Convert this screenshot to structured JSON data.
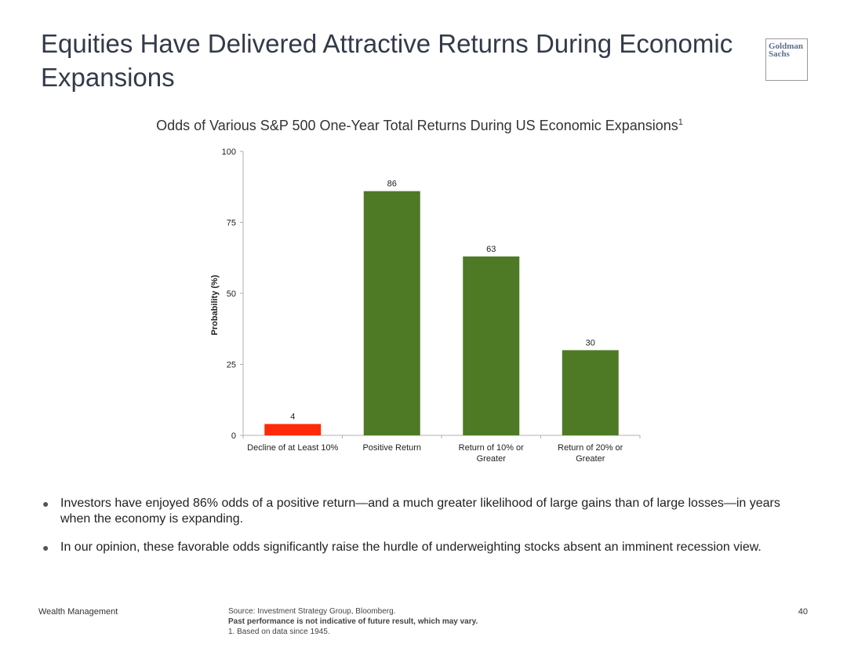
{
  "slide": {
    "title": "Equities Have Delivered Attractive Returns During Economic Expansions",
    "logo_line1": "Goldman",
    "logo_line2": "Sachs",
    "page_number": "40"
  },
  "chart_data": {
    "type": "bar",
    "title": "Odds of Various S&P 500 One-Year Total Returns During US Economic Expansions",
    "title_footnote": "1",
    "xlabel": "",
    "ylabel": "Probability (%)",
    "ylim": [
      0,
      100
    ],
    "yticks": [
      0,
      25,
      50,
      75,
      100
    ],
    "categories": [
      [
        "Decline of at Least 10%"
      ],
      [
        "Positive Return"
      ],
      [
        "Return of 10% or",
        "Greater"
      ],
      [
        "Return of 20% or",
        "Greater"
      ]
    ],
    "values": [
      4,
      86,
      63,
      30
    ],
    "bar_colors": [
      "#ff2a0a",
      "#4e7a26",
      "#4e7a26",
      "#4e7a26"
    ],
    "data_labels": true,
    "grid": false,
    "legend": "none"
  },
  "bullets": [
    "Investors have enjoyed 86% odds of a positive return—and a much greater likelihood of large gains than of large losses—in years when the economy is expanding.",
    "In our opinion, these favorable odds significantly raise the hurdle of underweighting stocks absent an imminent recession view."
  ],
  "footer": {
    "division": "Wealth Management",
    "source": "Source: Investment Strategy Group, Bloomberg.",
    "disclaimer": "Past performance is not indicative of future result, which may vary.",
    "footnote": "1. Based on data since 1945."
  }
}
